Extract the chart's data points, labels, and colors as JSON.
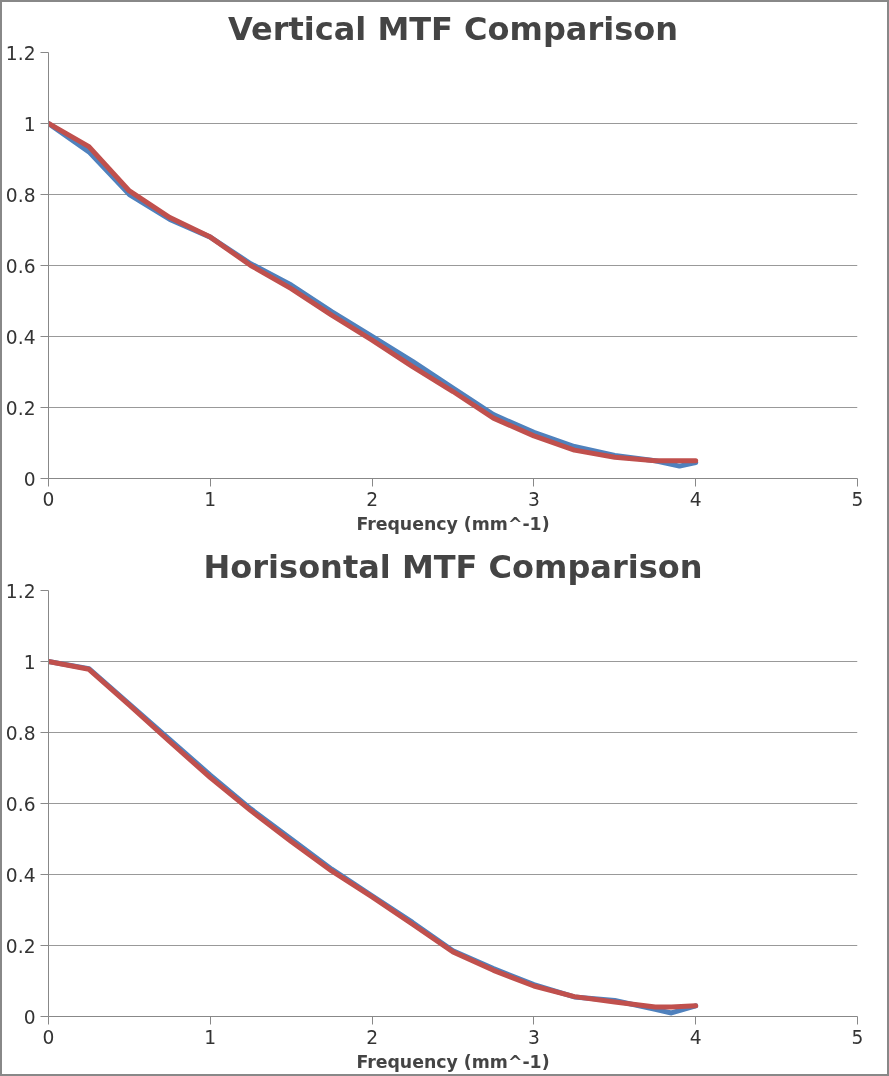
{
  "chart_data": [
    {
      "type": "line",
      "title": "Vertical MTF Comparison",
      "xlabel": "Frequency (mm^-1)",
      "x": [
        0,
        0.25,
        0.5,
        0.75,
        1.0,
        1.25,
        1.5,
        1.75,
        2.0,
        2.25,
        2.5,
        2.75,
        3.0,
        3.25,
        3.5,
        3.75,
        3.9,
        4.0
      ],
      "series": [
        {
          "color": "#4f81bd",
          "values": [
            1.0,
            0.92,
            0.8,
            0.73,
            0.68,
            0.605,
            0.545,
            0.47,
            0.4,
            0.33,
            0.255,
            0.18,
            0.13,
            0.09,
            0.065,
            0.05,
            0.035,
            0.045
          ]
        },
        {
          "color": "#c0504d",
          "values": [
            1.0,
            0.935,
            0.81,
            0.735,
            0.68,
            0.6,
            0.535,
            0.46,
            0.39,
            0.315,
            0.245,
            0.17,
            0.12,
            0.08,
            0.06,
            0.05,
            0.05,
            0.05
          ]
        }
      ],
      "xlim": [
        0,
        5
      ],
      "ylim": [
        0,
        1.2
      ],
      "xticks": [
        0,
        1,
        2,
        3,
        4,
        5
      ],
      "yticks": [
        0,
        0.2,
        0.4,
        0.6,
        0.8,
        1,
        1.2
      ],
      "grid": "y",
      "marker": "none",
      "line_style": "solid"
    },
    {
      "type": "line",
      "title": "Horisontal MTF Comparison",
      "xlabel": "Frequency (mm^-1)",
      "x": [
        0,
        0.25,
        0.5,
        0.75,
        1.0,
        1.25,
        1.5,
        1.75,
        2.0,
        2.25,
        2.5,
        2.75,
        3.0,
        3.25,
        3.5,
        3.75,
        3.85,
        4.0
      ],
      "series": [
        {
          "color": "#4f81bd",
          "values": [
            1.0,
            0.98,
            0.88,
            0.78,
            0.68,
            0.585,
            0.5,
            0.415,
            0.34,
            0.265,
            0.185,
            0.135,
            0.09,
            0.055,
            0.045,
            0.02,
            0.01,
            0.03
          ]
        },
        {
          "color": "#c0504d",
          "values": [
            1.0,
            0.978,
            0.877,
            0.774,
            0.673,
            0.58,
            0.493,
            0.41,
            0.337,
            0.26,
            0.182,
            0.13,
            0.086,
            0.056,
            0.041,
            0.027,
            0.027,
            0.03
          ]
        }
      ],
      "xlim": [
        0,
        5
      ],
      "ylim": [
        0,
        1.2
      ],
      "xticks": [
        0,
        1,
        2,
        3,
        4,
        5
      ],
      "yticks": [
        0,
        0.2,
        0.4,
        0.6,
        0.8,
        1,
        1.2
      ],
      "grid": "y",
      "marker": "none",
      "line_style": "solid"
    }
  ]
}
